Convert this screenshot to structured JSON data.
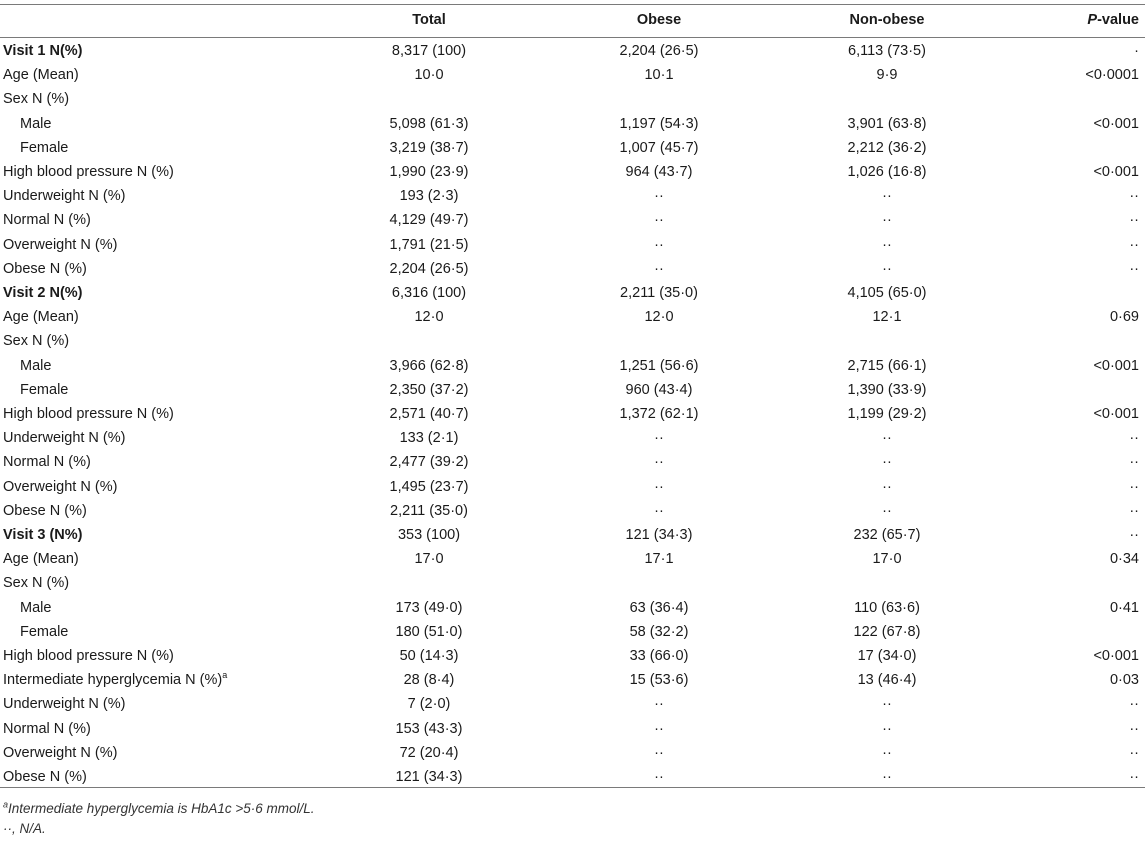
{
  "header": {
    "total": "Total",
    "obese": "Obese",
    "nonobese": "Non-obese",
    "pvalue_italic": "P",
    "pvalue_rest": "-value"
  },
  "rows": [
    {
      "label": "Visit 1 N(%)",
      "style": "bold",
      "total": "8,317 (100)",
      "obese": "2,204 (26·5)",
      "nonobese": "6,113 (73·5)",
      "p": "·"
    },
    {
      "label": "Age (Mean)",
      "style": "",
      "total": "10·0",
      "obese": "10·1",
      "nonobese": "9·9",
      "p": "<0·0001"
    },
    {
      "label": "Sex N (%)",
      "style": "",
      "total": "",
      "obese": "",
      "nonobese": "",
      "p": ""
    },
    {
      "label": "Male",
      "style": "indent",
      "total": "5,098 (61·3)",
      "obese": "1,197 (54·3)",
      "nonobese": "3,901 (63·8)",
      "p": "<0·001"
    },
    {
      "label": "Female",
      "style": "indent",
      "total": "3,219 (38·7)",
      "obese": "1,007 (45·7)",
      "nonobese": "2,212 (36·2)",
      "p": ""
    },
    {
      "label": "High blood pressure N (%)",
      "style": "",
      "total": "1,990 (23·9)",
      "obese": "964 (43·7)",
      "nonobese": "1,026 (16·8)",
      "p": "<0·001"
    },
    {
      "label": "Underweight N (%)",
      "style": "",
      "total": "193 (2·3)",
      "obese": "··",
      "nonobese": "··",
      "p": "··"
    },
    {
      "label": "Normal N (%)",
      "style": "",
      "total": "4,129 (49·7)",
      "obese": "··",
      "nonobese": "··",
      "p": "··"
    },
    {
      "label": "Overweight N (%)",
      "style": "",
      "total": "1,791 (21·5)",
      "obese": "··",
      "nonobese": "··",
      "p": "··"
    },
    {
      "label": "Obese N (%)",
      "style": "",
      "total": "2,204 (26·5)",
      "obese": "··",
      "nonobese": "··",
      "p": "··"
    },
    {
      "label": "Visit 2 N(%)",
      "style": "bold",
      "total": "6,316 (100)",
      "obese": "2,211 (35·0)",
      "nonobese": "4,105 (65·0)",
      "p": ""
    },
    {
      "label": "Age (Mean)",
      "style": "",
      "total": "12·0",
      "obese": "12·0",
      "nonobese": "12·1",
      "p": "0·69"
    },
    {
      "label": "Sex N (%)",
      "style": "",
      "total": "",
      "obese": "",
      "nonobese": "",
      "p": ""
    },
    {
      "label": "Male",
      "style": "indent",
      "total": "3,966 (62·8)",
      "obese": "1,251 (56·6)",
      "nonobese": "2,715 (66·1)",
      "p": "<0·001"
    },
    {
      "label": "Female",
      "style": "indent",
      "total": "2,350 (37·2)",
      "obese": "960 (43·4)",
      "nonobese": "1,390 (33·9)",
      "p": ""
    },
    {
      "label": "High blood pressure N (%)",
      "style": "",
      "total": "2,571 (40·7)",
      "obese": "1,372 (62·1)",
      "nonobese": "1,199 (29·2)",
      "p": "<0·001"
    },
    {
      "label": "Underweight N (%)",
      "style": "",
      "total": "133 (2·1)",
      "obese": "··",
      "nonobese": "··",
      "p": "··"
    },
    {
      "label": "Normal N (%)",
      "style": "",
      "total": "2,477 (39·2)",
      "obese": "··",
      "nonobese": "··",
      "p": "··"
    },
    {
      "label": "Overweight N (%)",
      "style": "",
      "total": "1,495 (23·7)",
      "obese": "··",
      "nonobese": "··",
      "p": "··"
    },
    {
      "label": "Obese N (%)",
      "style": "",
      "total": "2,211 (35·0)",
      "obese": "··",
      "nonobese": "··",
      "p": "··"
    },
    {
      "label": "Visit 3 (N%)",
      "style": "bold",
      "total": "353 (100)",
      "obese": "121 (34·3)",
      "nonobese": "232 (65·7)",
      "p": "··"
    },
    {
      "label": "Age (Mean)",
      "style": "",
      "total": "17·0",
      "obese": "17·1",
      "nonobese": "17·0",
      "p": "0·34"
    },
    {
      "label": "Sex N (%)",
      "style": "",
      "total": "",
      "obese": "",
      "nonobese": "",
      "p": ""
    },
    {
      "label": "Male",
      "style": "indent",
      "total": "173 (49·0)",
      "obese": "63 (36·4)",
      "nonobese": "110 (63·6)",
      "p": "0·41"
    },
    {
      "label": "Female",
      "style": "indent",
      "total": "180 (51·0)",
      "obese": "58 (32·2)",
      "nonobese": "122 (67·8)",
      "p": ""
    },
    {
      "label": "High blood pressure N (%)",
      "style": "",
      "total": "50 (14·3)",
      "obese": "33 (66·0)",
      "nonobese": "17 (34·0)",
      "p": "<0·001"
    },
    {
      "label": "Intermediate hyperglycemia N (%)",
      "sup": "a",
      "style": "",
      "total": "28 (8·4)",
      "obese": "15 (53·6)",
      "nonobese": "13 (46·4)",
      "p": "0·03"
    },
    {
      "label": "Underweight N (%)",
      "style": "",
      "total": "7 (2·0)",
      "obese": "··",
      "nonobese": "··",
      "p": "··"
    },
    {
      "label": "Normal N (%)",
      "style": "",
      "total": "153 (43·3)",
      "obese": "··",
      "nonobese": "··",
      "p": "··"
    },
    {
      "label": "Overweight N (%)",
      "style": "",
      "total": "72 (20·4)",
      "obese": "··",
      "nonobese": "··",
      "p": "··"
    },
    {
      "label": "Obese N (%)",
      "style": "",
      "total": "121 (34·3)",
      "obese": "··",
      "nonobese": "··",
      "p": "··"
    }
  ],
  "footnotes": {
    "a_marker": "a",
    "a_text": "Intermediate hyperglycemia is HbA1c >5·6 mmol/L.",
    "na_text": "··, N/A."
  }
}
